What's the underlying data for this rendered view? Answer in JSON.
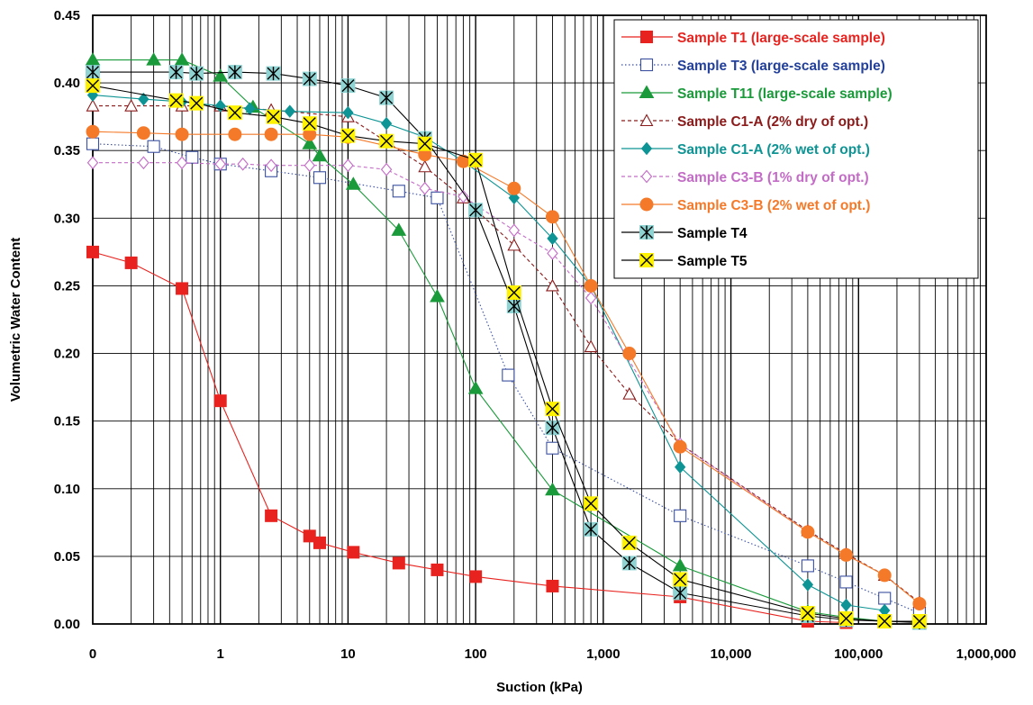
{
  "chart_data": {
    "type": "line",
    "title": "",
    "xlabel": "Suction (kPa)",
    "ylabel": "Volumetric Water Content",
    "x_scale": "log",
    "xlim": [
      0.1,
      1000000
    ],
    "ylim": [
      0,
      0.45
    ],
    "x_tick_labels": [
      "0",
      "1",
      "10",
      "100",
      "1,000",
      "10,000",
      "100,000",
      "1,000,000"
    ],
    "y_tick_labels": [
      "0.00",
      "0.05",
      "0.10",
      "0.15",
      "0.20",
      "0.25",
      "0.30",
      "0.35",
      "0.40",
      "0.45"
    ],
    "grid": true,
    "legend_position": "top-right",
    "series": [
      {
        "name": "Sample T1 (large-scale sample)",
        "color": "#e8231f",
        "label_color": "#e8231f",
        "marker": "square-filled",
        "dash": "solid",
        "points": [
          [
            0.1,
            0.275
          ],
          [
            0.2,
            0.267
          ],
          [
            0.5,
            0.248
          ],
          [
            1,
            0.165
          ],
          [
            2.5,
            0.08
          ],
          [
            5,
            0.065
          ],
          [
            6,
            0.06
          ],
          [
            11,
            0.053
          ],
          [
            25,
            0.045
          ],
          [
            50,
            0.04
          ],
          [
            100,
            0.035
          ],
          [
            400,
            0.028
          ],
          [
            4000,
            0.02
          ],
          [
            40000,
            0.002
          ],
          [
            80000,
            0.001
          ]
        ]
      },
      {
        "name": "Sample T3 (large-scale sample)",
        "color": "#3a4fa0",
        "label_color": "#23409a",
        "marker": "square-open",
        "dash": "dot",
        "points": [
          [
            0.1,
            0.355
          ],
          [
            0.3,
            0.353
          ],
          [
            0.6,
            0.345
          ],
          [
            1,
            0.34
          ],
          [
            2.5,
            0.335
          ],
          [
            6,
            0.33
          ],
          [
            25,
            0.32
          ],
          [
            50,
            0.315
          ],
          [
            180,
            0.184
          ],
          [
            400,
            0.13
          ],
          [
            4000,
            0.08
          ],
          [
            40000,
            0.043
          ],
          [
            80000,
            0.031
          ],
          [
            160000,
            0.019
          ],
          [
            300000,
            0.008
          ]
        ]
      },
      {
        "name": "Sample T11 (large-scale sample)",
        "color": "#1a9a3a",
        "label_color": "#1a9a3a",
        "marker": "triangle-filled",
        "dash": "solid",
        "points": [
          [
            0.1,
            0.417
          ],
          [
            0.3,
            0.417
          ],
          [
            0.5,
            0.417
          ],
          [
            1,
            0.405
          ],
          [
            1.8,
            0.382
          ],
          [
            5,
            0.355
          ],
          [
            6,
            0.346
          ],
          [
            11,
            0.325
          ],
          [
            25,
            0.291
          ],
          [
            50,
            0.242
          ],
          [
            100,
            0.174
          ],
          [
            400,
            0.099
          ],
          [
            4000,
            0.043
          ],
          [
            40000,
            0.009
          ],
          [
            80000,
            0.005
          ],
          [
            160000,
            0.002
          ]
        ]
      },
      {
        "name": "Sample C1-A (2% dry of opt.)",
        "color": "#8b1a1a",
        "label_color": "#8b1a1a",
        "marker": "triangle-open",
        "dash": "dash",
        "points": [
          [
            0.1,
            0.383
          ],
          [
            0.2,
            0.383
          ],
          [
            0.5,
            0.383
          ],
          [
            1,
            0.383
          ],
          [
            2.5,
            0.38
          ],
          [
            10,
            0.375
          ],
          [
            40,
            0.338
          ],
          [
            80,
            0.315
          ],
          [
            200,
            0.28
          ],
          [
            400,
            0.25
          ],
          [
            800,
            0.205
          ],
          [
            1600,
            0.17
          ],
          [
            4000,
            0.133
          ],
          [
            40000,
            0.069
          ],
          [
            80000,
            0.052
          ],
          [
            160000,
            0.036
          ],
          [
            300000,
            0.016
          ]
        ]
      },
      {
        "name": "Sample C1-A (2% wet of opt.)",
        "color": "#0e9494",
        "label_color": "#0e9494",
        "marker": "diamond-filled",
        "dash": "solid",
        "points": [
          [
            0.1,
            0.391
          ],
          [
            0.25,
            0.388
          ],
          [
            0.5,
            0.386
          ],
          [
            1,
            0.383
          ],
          [
            1.7,
            0.381
          ],
          [
            3.5,
            0.379
          ],
          [
            10,
            0.378
          ],
          [
            20,
            0.37
          ],
          [
            40,
            0.36
          ],
          [
            80,
            0.342
          ],
          [
            200,
            0.315
          ],
          [
            400,
            0.285
          ],
          [
            800,
            0.25
          ],
          [
            4000,
            0.116
          ],
          [
            40000,
            0.029
          ],
          [
            80000,
            0.014
          ],
          [
            160000,
            0.01
          ]
        ]
      },
      {
        "name": "Sample C3-B (1% dry of opt.)",
        "color": "#c36cc6",
        "label_color": "#c36cc6",
        "marker": "diamond-open",
        "dash": "dash",
        "points": [
          [
            0.1,
            0.341
          ],
          [
            0.25,
            0.341
          ],
          [
            0.5,
            0.341
          ],
          [
            1,
            0.34
          ],
          [
            1.5,
            0.34
          ],
          [
            2.5,
            0.339
          ],
          [
            5,
            0.339
          ],
          [
            10,
            0.339
          ],
          [
            20,
            0.336
          ],
          [
            40,
            0.322
          ],
          [
            80,
            0.316
          ],
          [
            200,
            0.291
          ],
          [
            400,
            0.274
          ],
          [
            800,
            0.241
          ],
          [
            4000,
            0.133
          ],
          [
            40000,
            0.068
          ]
        ]
      },
      {
        "name": "Sample C3-B (2% wet of opt.)",
        "color": "#f47a2a",
        "label_color": "#f47a2a",
        "marker": "circle-filled",
        "dash": "solid",
        "points": [
          [
            0.1,
            0.364
          ],
          [
            0.25,
            0.363
          ],
          [
            0.5,
            0.362
          ],
          [
            1.3,
            0.362
          ],
          [
            2.5,
            0.362
          ],
          [
            5,
            0.362
          ],
          [
            10,
            0.36
          ],
          [
            40,
            0.347
          ],
          [
            80,
            0.342
          ],
          [
            200,
            0.322
          ],
          [
            400,
            0.301
          ],
          [
            800,
            0.25
          ],
          [
            1600,
            0.2
          ],
          [
            4000,
            0.131
          ],
          [
            40000,
            0.068
          ],
          [
            80000,
            0.051
          ],
          [
            160000,
            0.036
          ],
          [
            300000,
            0.015
          ]
        ]
      },
      {
        "name": "Sample T4",
        "color": "#000000",
        "label_color": "#000000",
        "marker": "asterisk-box",
        "dash": "solid",
        "points": [
          [
            0.1,
            0.408
          ],
          [
            0.45,
            0.408
          ],
          [
            0.65,
            0.407
          ],
          [
            1.3,
            0.408
          ],
          [
            2.6,
            0.407
          ],
          [
            5,
            0.403
          ],
          [
            10,
            0.398
          ],
          [
            20,
            0.389
          ],
          [
            40,
            0.359
          ],
          [
            100,
            0.306
          ],
          [
            200,
            0.235
          ],
          [
            400,
            0.145
          ],
          [
            800,
            0.07
          ],
          [
            1600,
            0.045
          ],
          [
            4000,
            0.023
          ],
          [
            40000,
            0.006
          ],
          [
            80000,
            0.003
          ],
          [
            160000,
            0.002
          ],
          [
            300000,
            0.001
          ]
        ]
      },
      {
        "name": "Sample T5",
        "color": "#000000",
        "label_color": "#000000",
        "marker": "x-box-yellow",
        "dash": "solid",
        "points": [
          [
            0.1,
            0.398
          ],
          [
            0.45,
            0.387
          ],
          [
            0.65,
            0.385
          ],
          [
            1.3,
            0.378
          ],
          [
            2.6,
            0.375
          ],
          [
            5,
            0.37
          ],
          [
            10,
            0.361
          ],
          [
            20,
            0.357
          ],
          [
            40,
            0.355
          ],
          [
            100,
            0.343
          ],
          [
            200,
            0.245
          ],
          [
            400,
            0.159
          ],
          [
            800,
            0.089
          ],
          [
            1600,
            0.06
          ],
          [
            4000,
            0.033
          ],
          [
            40000,
            0.008
          ],
          [
            80000,
            0.004
          ],
          [
            160000,
            0.002
          ],
          [
            300000,
            0.002
          ]
        ]
      }
    ]
  }
}
